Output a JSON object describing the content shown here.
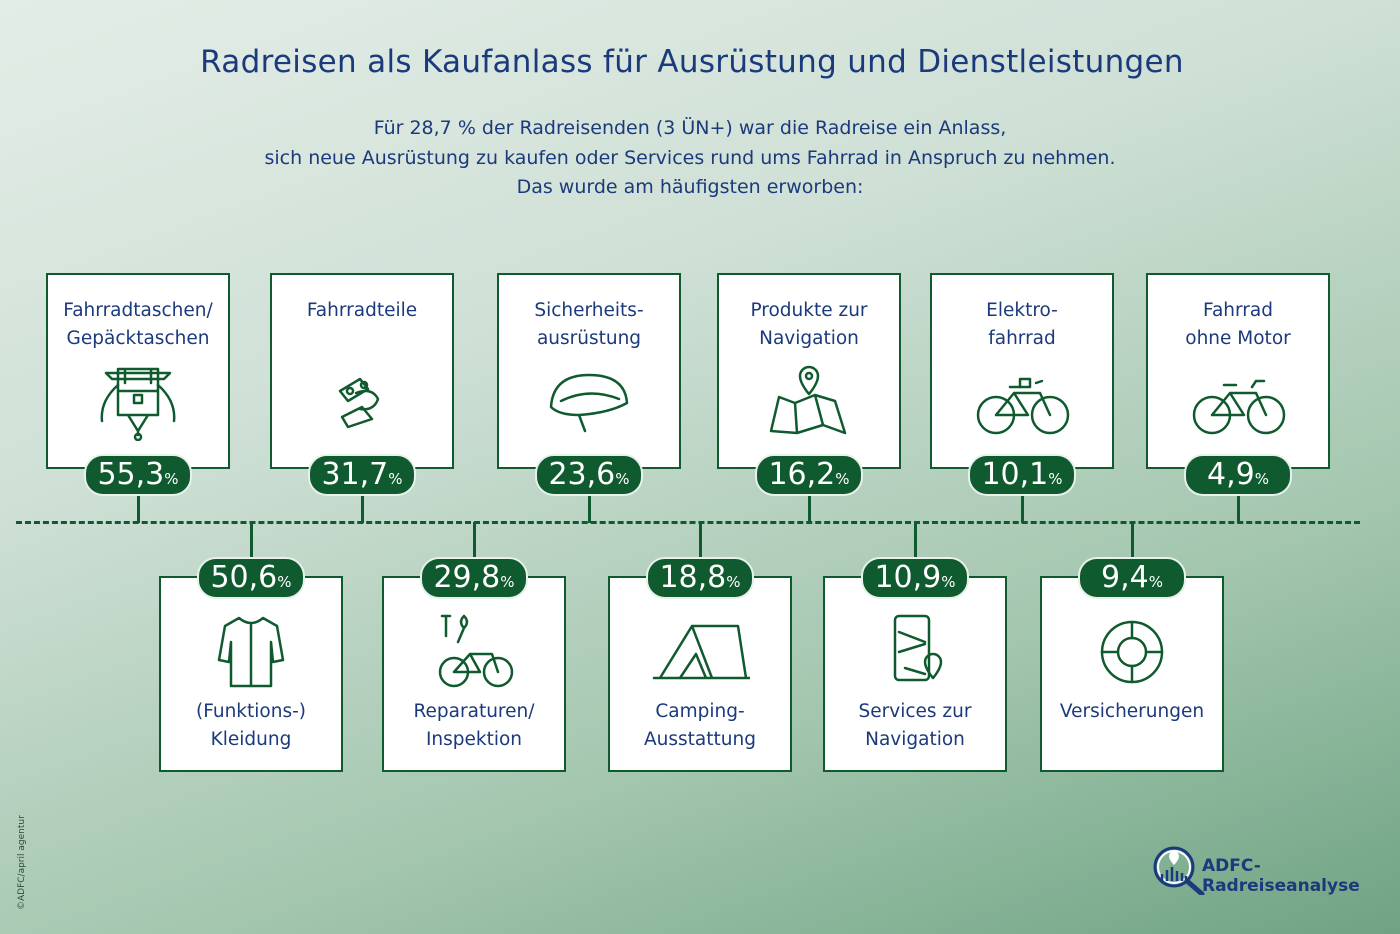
{
  "title": "Radreisen als Kaufanlass für Ausrüstung und Dienstleistungen",
  "subtitle_lines": [
    "Für 28,7 % der Radreisenden (3 ÜN+) war die Radreise ein Anlass,",
    "sich neue Ausrüstung zu kaufen oder Services rund ums Fahrrad in Anspruch zu nehmen.",
    "Das wurde am häufigsten erworben:"
  ],
  "colors": {
    "accent": "#0f5a2e",
    "text": "#1b3a7c"
  },
  "chart_data": {
    "type": "bar",
    "unit": "%",
    "items": [
      {
        "label": "Fahrradtaschen/\nGepäcktaschen",
        "value": 55.3,
        "display": "55,3",
        "icon": "pannier-bag-icon"
      },
      {
        "label": "(Funktions-)\nKleidung",
        "value": 50.6,
        "display": "50,6",
        "icon": "jersey-icon"
      },
      {
        "label": "Fahrradteile",
        "value": 31.7,
        "display": "31,7",
        "icon": "derailleur-icon"
      },
      {
        "label": "Reparaturen/\nInspektion",
        "value": 29.8,
        "display": "29,8",
        "icon": "tools-bike-icon"
      },
      {
        "label": "Sicherheits-\nausrüstung",
        "value": 23.6,
        "display": "23,6",
        "icon": "helmet-icon"
      },
      {
        "label": "Camping-\nAusstattung",
        "value": 18.8,
        "display": "18,8",
        "icon": "tent-icon"
      },
      {
        "label": "Produkte zur\nNavigation",
        "value": 16.2,
        "display": "16,2",
        "icon": "map-pin-icon"
      },
      {
        "label": "Services zur\nNavigation",
        "value": 10.9,
        "display": "10,9",
        "icon": "phone-map-icon"
      },
      {
        "label": "Elektro-\nfahrrad",
        "value": 10.1,
        "display": "10,1",
        "icon": "ebike-icon"
      },
      {
        "label": "Versicherungen",
        "value": 9.4,
        "display": "9,4",
        "icon": "lifebuoy-icon"
      },
      {
        "label": "Fahrrad\nohne Motor",
        "value": 4.9,
        "display": "4,9",
        "icon": "bicycle-icon"
      }
    ]
  },
  "logo_text": "ADFC-Radreiseanalyse",
  "copyright": "©ADFC/april agentur"
}
